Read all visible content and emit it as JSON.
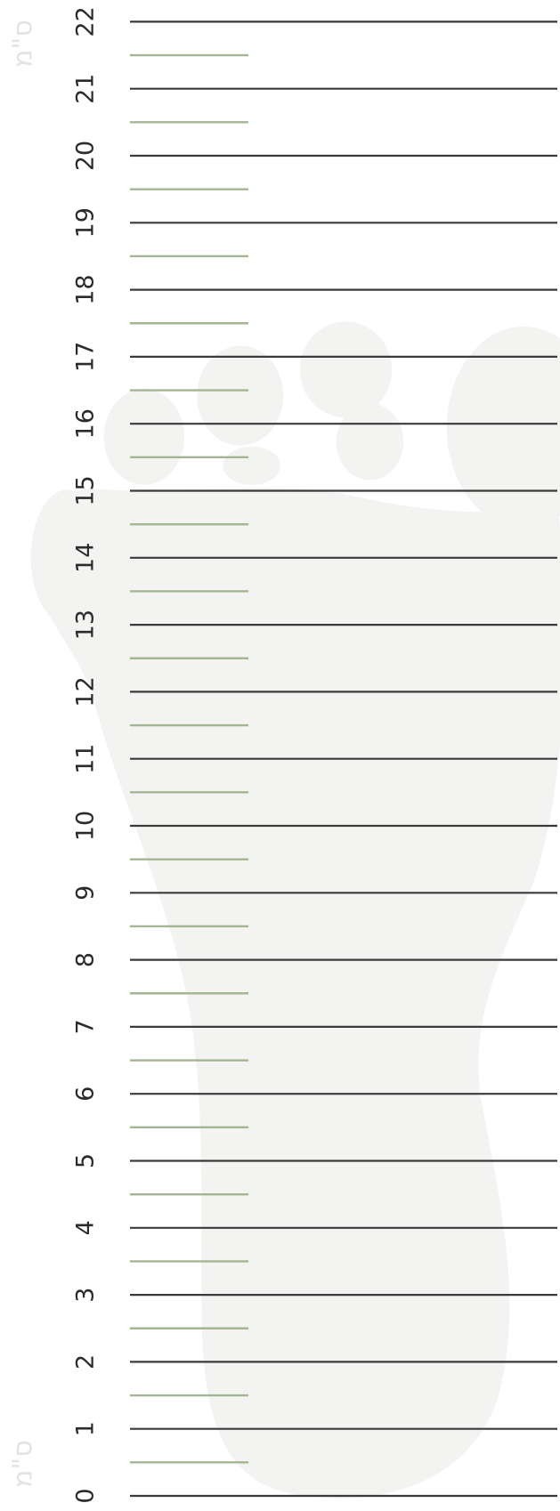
{
  "ruler": {
    "unit": "ס\"מ",
    "numbers": [
      0,
      1,
      2,
      3,
      4,
      5,
      6,
      7,
      8,
      9,
      10,
      11,
      12,
      13,
      14,
      15,
      16,
      17,
      18,
      19,
      20,
      21,
      22
    ]
  }
}
